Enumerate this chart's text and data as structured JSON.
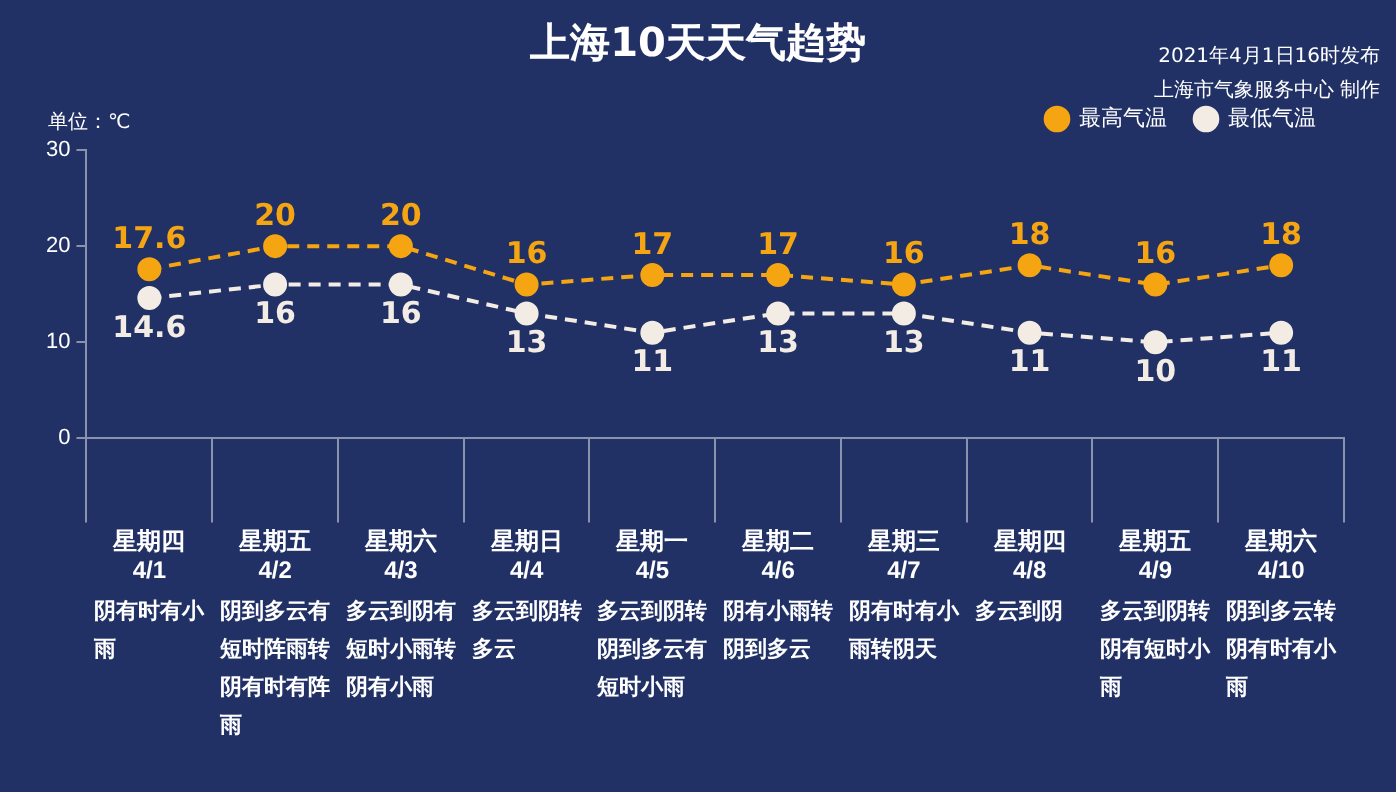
{
  "chart_data": {
    "type": "line",
    "title": "上海10天天气趋势",
    "ylabel": "单位：℃",
    "categories": [
      "星期四\n4/1",
      "星期五\n4/2",
      "星期六\n4/3",
      "星期日\n4/4",
      "星期一\n4/5",
      "星期二\n4/6",
      "星期三\n4/7",
      "星期四\n4/8",
      "星期五\n4/9",
      "星期六\n4/10"
    ],
    "series": [
      {
        "name": "最高气温",
        "color": "#f5a511",
        "values": [
          17.6,
          20,
          20,
          16,
          17,
          17,
          16,
          18,
          16,
          18
        ]
      },
      {
        "name": "最低气温",
        "color": "#f3ece4",
        "values": [
          14.6,
          16,
          16,
          13,
          11,
          13,
          13,
          11,
          10,
          11
        ]
      }
    ],
    "ylim": [
      0,
      30
    ],
    "yticks": [
      0,
      10,
      20,
      30
    ],
    "grid": false,
    "legend": "top right",
    "marker": "circle",
    "line_style": "dashed",
    "data_labels": true,
    "annotations": [
      "2021年4月1日16时发布",
      "上海市气象服务中心 制作",
      "阴有时有小雨",
      "阴到多云有短时阵雨转阴有时有阵雨",
      "多云到阴有短时小雨转阴有小雨",
      "多云到阴转多云",
      "多云到阴转阴到多云有短时小雨",
      "阴有小雨转阴到多云",
      "阴有时有小雨转阴天",
      "多云到阴",
      "多云到阴转阴有短时小雨",
      "阴到多云转阴有时有小雨"
    ]
  }
}
